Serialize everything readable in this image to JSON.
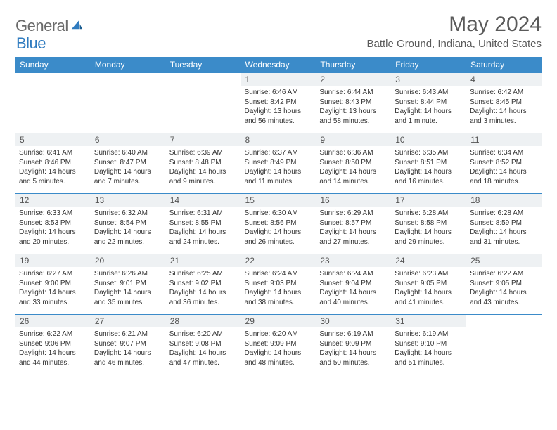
{
  "brand": {
    "word1": "General",
    "word2": "Blue"
  },
  "title": "May 2024",
  "location": "Battle Ground, Indiana, United States",
  "colors": {
    "header_bg": "#3b8bc9",
    "header_text": "#ffffff",
    "daynum_bg": "#eef1f3",
    "border": "#3b8bc9",
    "logo_gray": "#6b6b6b",
    "logo_blue": "#2f7bbf"
  },
  "weekdays": [
    "Sunday",
    "Monday",
    "Tuesday",
    "Wednesday",
    "Thursday",
    "Friday",
    "Saturday"
  ],
  "weeks": [
    [
      {
        "day": "",
        "sunrise": "",
        "sunset": "",
        "daylight": ""
      },
      {
        "day": "",
        "sunrise": "",
        "sunset": "",
        "daylight": ""
      },
      {
        "day": "",
        "sunrise": "",
        "sunset": "",
        "daylight": ""
      },
      {
        "day": "1",
        "sunrise": "Sunrise: 6:46 AM",
        "sunset": "Sunset: 8:42 PM",
        "daylight": "Daylight: 13 hours and 56 minutes."
      },
      {
        "day": "2",
        "sunrise": "Sunrise: 6:44 AM",
        "sunset": "Sunset: 8:43 PM",
        "daylight": "Daylight: 13 hours and 58 minutes."
      },
      {
        "day": "3",
        "sunrise": "Sunrise: 6:43 AM",
        "sunset": "Sunset: 8:44 PM",
        "daylight": "Daylight: 14 hours and 1 minute."
      },
      {
        "day": "4",
        "sunrise": "Sunrise: 6:42 AM",
        "sunset": "Sunset: 8:45 PM",
        "daylight": "Daylight: 14 hours and 3 minutes."
      }
    ],
    [
      {
        "day": "5",
        "sunrise": "Sunrise: 6:41 AM",
        "sunset": "Sunset: 8:46 PM",
        "daylight": "Daylight: 14 hours and 5 minutes."
      },
      {
        "day": "6",
        "sunrise": "Sunrise: 6:40 AM",
        "sunset": "Sunset: 8:47 PM",
        "daylight": "Daylight: 14 hours and 7 minutes."
      },
      {
        "day": "7",
        "sunrise": "Sunrise: 6:39 AM",
        "sunset": "Sunset: 8:48 PM",
        "daylight": "Daylight: 14 hours and 9 minutes."
      },
      {
        "day": "8",
        "sunrise": "Sunrise: 6:37 AM",
        "sunset": "Sunset: 8:49 PM",
        "daylight": "Daylight: 14 hours and 11 minutes."
      },
      {
        "day": "9",
        "sunrise": "Sunrise: 6:36 AM",
        "sunset": "Sunset: 8:50 PM",
        "daylight": "Daylight: 14 hours and 14 minutes."
      },
      {
        "day": "10",
        "sunrise": "Sunrise: 6:35 AM",
        "sunset": "Sunset: 8:51 PM",
        "daylight": "Daylight: 14 hours and 16 minutes."
      },
      {
        "day": "11",
        "sunrise": "Sunrise: 6:34 AM",
        "sunset": "Sunset: 8:52 PM",
        "daylight": "Daylight: 14 hours and 18 minutes."
      }
    ],
    [
      {
        "day": "12",
        "sunrise": "Sunrise: 6:33 AM",
        "sunset": "Sunset: 8:53 PM",
        "daylight": "Daylight: 14 hours and 20 minutes."
      },
      {
        "day": "13",
        "sunrise": "Sunrise: 6:32 AM",
        "sunset": "Sunset: 8:54 PM",
        "daylight": "Daylight: 14 hours and 22 minutes."
      },
      {
        "day": "14",
        "sunrise": "Sunrise: 6:31 AM",
        "sunset": "Sunset: 8:55 PM",
        "daylight": "Daylight: 14 hours and 24 minutes."
      },
      {
        "day": "15",
        "sunrise": "Sunrise: 6:30 AM",
        "sunset": "Sunset: 8:56 PM",
        "daylight": "Daylight: 14 hours and 26 minutes."
      },
      {
        "day": "16",
        "sunrise": "Sunrise: 6:29 AM",
        "sunset": "Sunset: 8:57 PM",
        "daylight": "Daylight: 14 hours and 27 minutes."
      },
      {
        "day": "17",
        "sunrise": "Sunrise: 6:28 AM",
        "sunset": "Sunset: 8:58 PM",
        "daylight": "Daylight: 14 hours and 29 minutes."
      },
      {
        "day": "18",
        "sunrise": "Sunrise: 6:28 AM",
        "sunset": "Sunset: 8:59 PM",
        "daylight": "Daylight: 14 hours and 31 minutes."
      }
    ],
    [
      {
        "day": "19",
        "sunrise": "Sunrise: 6:27 AM",
        "sunset": "Sunset: 9:00 PM",
        "daylight": "Daylight: 14 hours and 33 minutes."
      },
      {
        "day": "20",
        "sunrise": "Sunrise: 6:26 AM",
        "sunset": "Sunset: 9:01 PM",
        "daylight": "Daylight: 14 hours and 35 minutes."
      },
      {
        "day": "21",
        "sunrise": "Sunrise: 6:25 AM",
        "sunset": "Sunset: 9:02 PM",
        "daylight": "Daylight: 14 hours and 36 minutes."
      },
      {
        "day": "22",
        "sunrise": "Sunrise: 6:24 AM",
        "sunset": "Sunset: 9:03 PM",
        "daylight": "Daylight: 14 hours and 38 minutes."
      },
      {
        "day": "23",
        "sunrise": "Sunrise: 6:24 AM",
        "sunset": "Sunset: 9:04 PM",
        "daylight": "Daylight: 14 hours and 40 minutes."
      },
      {
        "day": "24",
        "sunrise": "Sunrise: 6:23 AM",
        "sunset": "Sunset: 9:05 PM",
        "daylight": "Daylight: 14 hours and 41 minutes."
      },
      {
        "day": "25",
        "sunrise": "Sunrise: 6:22 AM",
        "sunset": "Sunset: 9:05 PM",
        "daylight": "Daylight: 14 hours and 43 minutes."
      }
    ],
    [
      {
        "day": "26",
        "sunrise": "Sunrise: 6:22 AM",
        "sunset": "Sunset: 9:06 PM",
        "daylight": "Daylight: 14 hours and 44 minutes."
      },
      {
        "day": "27",
        "sunrise": "Sunrise: 6:21 AM",
        "sunset": "Sunset: 9:07 PM",
        "daylight": "Daylight: 14 hours and 46 minutes."
      },
      {
        "day": "28",
        "sunrise": "Sunrise: 6:20 AM",
        "sunset": "Sunset: 9:08 PM",
        "daylight": "Daylight: 14 hours and 47 minutes."
      },
      {
        "day": "29",
        "sunrise": "Sunrise: 6:20 AM",
        "sunset": "Sunset: 9:09 PM",
        "daylight": "Daylight: 14 hours and 48 minutes."
      },
      {
        "day": "30",
        "sunrise": "Sunrise: 6:19 AM",
        "sunset": "Sunset: 9:09 PM",
        "daylight": "Daylight: 14 hours and 50 minutes."
      },
      {
        "day": "31",
        "sunrise": "Sunrise: 6:19 AM",
        "sunset": "Sunset: 9:10 PM",
        "daylight": "Daylight: 14 hours and 51 minutes."
      },
      {
        "day": "",
        "sunrise": "",
        "sunset": "",
        "daylight": ""
      }
    ]
  ]
}
